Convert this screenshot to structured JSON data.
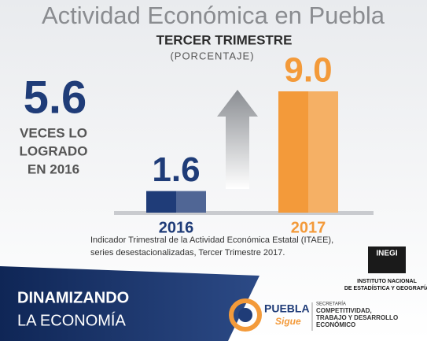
{
  "chart_data": {
    "type": "bar",
    "title": "Actividad Económica en Puebla",
    "subtitle": "TERCER TRIMESTRE",
    "unit": "(PORCENTAJE)",
    "categories": [
      "2016",
      "2017"
    ],
    "values": [
      1.6,
      9.0
    ],
    "value_labels": [
      "1.6",
      "9.0"
    ],
    "colors": [
      "#1f3c78",
      "#f39a3a"
    ]
  },
  "highlight": {
    "value": 5.6,
    "lines": [
      "VECES LO",
      "LOGRADO",
      "EN 2016"
    ]
  },
  "note": [
    "Indicador Trimestral de la Actividad Económica Estatal (ITAEE),",
    "series desestacionalizadas, Tercer Trimestre 2017."
  ],
  "footer": {
    "lines": [
      "DINAMIZANDO",
      "LA ECONOMÍA"
    ]
  },
  "logos": {
    "inegi": [
      "INEGI",
      "INSTITUTO NACIONAL",
      "DE ESTADÍSTICA Y GEOGRAFÍA"
    ],
    "puebla": [
      "PUEBLA",
      "Sigue"
    ],
    "secretaria": [
      "SECRETARÍA",
      "COMPETITIVIDAD,",
      "TRABAJO Y DESARROLLO",
      "ECONÓMICO"
    ]
  }
}
